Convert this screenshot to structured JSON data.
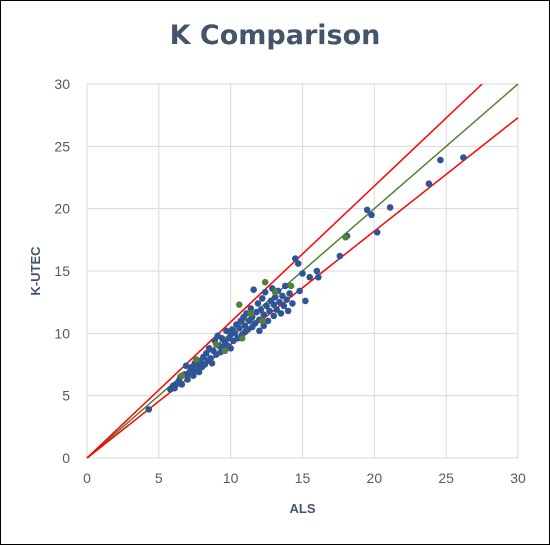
{
  "chart_data": {
    "type": "scatter",
    "title": "K Comparison",
    "xlabel": "ALS",
    "ylabel": "K-UTEC",
    "xlim": [
      0,
      30
    ],
    "ylim": [
      0,
      30
    ],
    "xticks": [
      0,
      5,
      10,
      15,
      20,
      25,
      30
    ],
    "yticks": [
      0,
      5,
      10,
      15,
      20,
      25,
      30
    ],
    "grid": true,
    "legend": "none",
    "colors": {
      "blue_points": "#2f5597",
      "green_points": "#548235",
      "identity_line": "#548235",
      "bound_lines": "#ff0000",
      "grid": "#d9d9d9",
      "title": "#44546a"
    },
    "lines": [
      {
        "color": "#548235",
        "points": [
          [
            0,
            0
          ],
          [
            30,
            30
          ]
        ]
      },
      {
        "color": "#ff0000",
        "points": [
          [
            0,
            0
          ],
          [
            27.5,
            30
          ]
        ]
      },
      {
        "color": "#ff0000",
        "points": [
          [
            0,
            0
          ],
          [
            30,
            27.3
          ]
        ]
      }
    ],
    "series": [
      {
        "color": "#2f5597",
        "points": [
          [
            4.3,
            3.9
          ],
          [
            5.8,
            5.5
          ],
          [
            6.0,
            5.8
          ],
          [
            6.1,
            5.6
          ],
          [
            6.3,
            6.0
          ],
          [
            6.4,
            6.2
          ],
          [
            6.5,
            6.5
          ],
          [
            6.6,
            5.9
          ],
          [
            6.8,
            6.7
          ],
          [
            6.9,
            7.4
          ],
          [
            7.0,
            6.3
          ],
          [
            7.1,
            6.8
          ],
          [
            7.2,
            7.0
          ],
          [
            7.3,
            7.3
          ],
          [
            7.4,
            6.6
          ],
          [
            7.5,
            7.6
          ],
          [
            7.6,
            7.0
          ],
          [
            7.7,
            7.4
          ],
          [
            7.8,
            6.9
          ],
          [
            7.9,
            7.8
          ],
          [
            8.0,
            7.3
          ],
          [
            8.1,
            8.1
          ],
          [
            8.2,
            7.5
          ],
          [
            8.3,
            8.4
          ],
          [
            8.4,
            7.8
          ],
          [
            8.5,
            8.8
          ],
          [
            8.6,
            8.0
          ],
          [
            8.7,
            7.6
          ],
          [
            8.8,
            8.6
          ],
          [
            8.9,
            9.4
          ],
          [
            9.0,
            8.3
          ],
          [
            9.1,
            9.8
          ],
          [
            9.2,
            9.0
          ],
          [
            9.3,
            8.5
          ],
          [
            9.4,
            9.6
          ],
          [
            9.5,
            8.9
          ],
          [
            9.6,
            9.3
          ],
          [
            9.7,
            10.2
          ],
          [
            9.8,
            9.0
          ],
          [
            9.9,
            9.6
          ],
          [
            10.0,
            8.8
          ],
          [
            10.0,
            9.9
          ],
          [
            10.1,
            10.3
          ],
          [
            10.2,
            9.4
          ],
          [
            10.3,
            10.0
          ],
          [
            10.4,
            10.7
          ],
          [
            10.5,
            9.6
          ],
          [
            10.6,
            10.4
          ],
          [
            10.7,
            11.0
          ],
          [
            10.8,
            9.9
          ],
          [
            10.9,
            11.3
          ],
          [
            11.0,
            10.1
          ],
          [
            11.0,
            10.6
          ],
          [
            11.1,
            11.6
          ],
          [
            11.2,
            10.3
          ],
          [
            11.3,
            11.0
          ],
          [
            11.4,
            12.0
          ],
          [
            11.5,
            10.5
          ],
          [
            11.5,
            11.3
          ],
          [
            11.6,
            13.5
          ],
          [
            11.7,
            10.8
          ],
          [
            11.8,
            11.7
          ],
          [
            11.9,
            12.4
          ],
          [
            12.0,
            10.2
          ],
          [
            12.0,
            11.1
          ],
          [
            12.1,
            11.9
          ],
          [
            12.2,
            12.8
          ],
          [
            12.3,
            10.6
          ],
          [
            12.3,
            11.5
          ],
          [
            12.4,
            13.3
          ],
          [
            12.5,
            12.2
          ],
          [
            12.6,
            11.0
          ],
          [
            12.7,
            11.8
          ],
          [
            12.8,
            12.6
          ],
          [
            12.9,
            13.6
          ],
          [
            13.0,
            11.4
          ],
          [
            13.0,
            12.3
          ],
          [
            13.1,
            12.9
          ],
          [
            13.2,
            11.9
          ],
          [
            13.3,
            13.4
          ],
          [
            13.4,
            12.5
          ],
          [
            13.5,
            11.6
          ],
          [
            13.6,
            13.0
          ],
          [
            13.7,
            12.2
          ],
          [
            13.8,
            13.8
          ],
          [
            13.9,
            12.7
          ],
          [
            14.0,
            11.8
          ],
          [
            14.1,
            13.2
          ],
          [
            14.3,
            12.4
          ],
          [
            14.5,
            16.0
          ],
          [
            14.7,
            15.6
          ],
          [
            14.8,
            13.4
          ],
          [
            15.0,
            14.8
          ],
          [
            15.2,
            12.6
          ],
          [
            15.5,
            14.5
          ],
          [
            16.0,
            15.0
          ],
          [
            16.1,
            14.5
          ],
          [
            17.6,
            16.2
          ],
          [
            18.1,
            17.8
          ],
          [
            19.5,
            19.9
          ],
          [
            19.8,
            19.5
          ],
          [
            20.2,
            18.1
          ],
          [
            21.1,
            20.1
          ],
          [
            23.8,
            22.0
          ],
          [
            24.6,
            23.9
          ],
          [
            26.2,
            24.1
          ]
        ]
      },
      {
        "color": "#548235",
        "points": [
          [
            6.6,
            6.6
          ],
          [
            7.6,
            7.9
          ],
          [
            9.0,
            9.1
          ],
          [
            9.6,
            8.6
          ],
          [
            10.6,
            12.3
          ],
          [
            10.8,
            9.6
          ],
          [
            11.4,
            11.6
          ],
          [
            12.2,
            11.0
          ],
          [
            12.4,
            14.1
          ],
          [
            13.1,
            13.3
          ],
          [
            14.2,
            13.8
          ],
          [
            18.0,
            17.7
          ]
        ]
      }
    ]
  }
}
